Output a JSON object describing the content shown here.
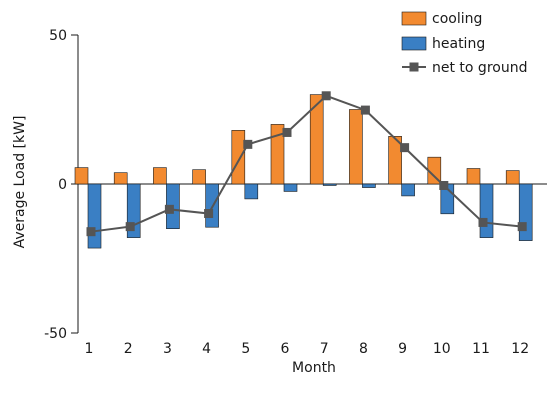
{
  "chart_data": {
    "type": "bar",
    "xlabel": "Month",
    "ylabel": "Average Load [kW]",
    "ylim": [
      -50,
      50
    ],
    "y_ticks": [
      50,
      0,
      -50
    ],
    "categories": [
      "1",
      "2",
      "3",
      "4",
      "5",
      "6",
      "7",
      "8",
      "9",
      "10",
      "11",
      "12"
    ],
    "series": [
      {
        "name": "cooling",
        "kind": "bar",
        "color": "#f28a30",
        "values": [
          5.5,
          3.8,
          5.5,
          4.8,
          18,
          20,
          30,
          25,
          16,
          9,
          5.2,
          4.5
        ]
      },
      {
        "name": "heating",
        "kind": "bar",
        "color": "#3a7fc4",
        "values": [
          -21.5,
          -18,
          -15,
          -14.5,
          -5,
          -2.5,
          -0.5,
          -1.2,
          -4,
          -10,
          -18,
          -19
        ]
      },
      {
        "name": "net to ground",
        "kind": "line",
        "color": "#555555",
        "values": [
          -16,
          -14.3,
          -8.5,
          -9.9,
          13.3,
          17.3,
          29.6,
          24.8,
          12.2,
          -0.5,
          -12.9,
          -14.3
        ]
      }
    ],
    "legend": {
      "placement": "top-right"
    },
    "grid": false
  }
}
